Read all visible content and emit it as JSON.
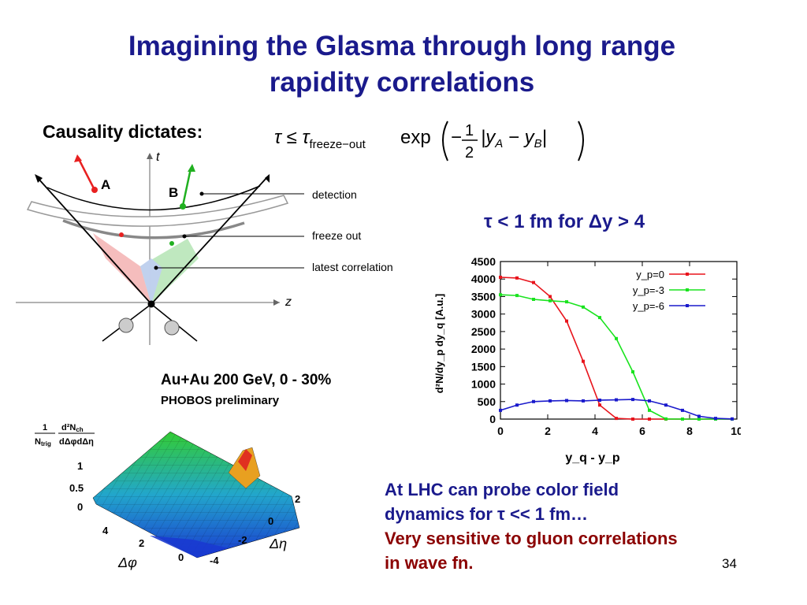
{
  "slide": {
    "title_line1": "Imagining the Glasma through long range",
    "title_line2": "rapidity correlations",
    "causality_label": "Causality dictates:",
    "formula": {
      "lhs": "τ ≤ τ",
      "sub": "freeze−out",
      "exp": "exp",
      "frac_num": "1",
      "frac_den": "2",
      "rest": "|y",
      "a": "A",
      "minus": " − y",
      "b": "B",
      "close": "|"
    },
    "tau_note": "τ < 1 fm for Δy > 4",
    "page_number": "34"
  },
  "diagram": {
    "t_label": "t",
    "z_label": "z",
    "a_label": "A",
    "b_label": "B",
    "detection": "detection",
    "freeze_out": "freeze out",
    "latest_correlation": "latest correlation"
  },
  "plot3d": {
    "label1": "Au+Au 200 GeV, 0 - 30%",
    "label2": "PHOBOS preliminary",
    "zaxis_num1": "1",
    "zaxis_num2": "d²N",
    "zaxis_num2_sub": "ch",
    "zaxis_den1": "N",
    "zaxis_den1_sub": "trig",
    "zaxis_den2": "dΔφdΔη",
    "z_ticks": [
      "1",
      "0.5",
      "0"
    ],
    "phi_ticks": [
      "4",
      "2",
      "0"
    ],
    "eta_ticks": [
      "2",
      "0",
      "-2",
      "-4"
    ],
    "phi_label": "Δφ",
    "eta_label": "Δη"
  },
  "chart_data": {
    "type": "line",
    "xlabel": "y_q - y_p",
    "ylabel": "d²N/dy_p dy_q [A.u.]",
    "xlim": [
      0,
      10
    ],
    "ylim": [
      0,
      4500
    ],
    "x_ticks": [
      "0",
      "2",
      "4",
      "6",
      "8",
      "10"
    ],
    "y_ticks": [
      "0",
      "500",
      "1000",
      "1500",
      "2000",
      "2500",
      "3000",
      "3500",
      "4000",
      "4500"
    ],
    "legend_position": "top-right",
    "grid": false,
    "series": [
      {
        "name": "y_p=0",
        "color": "#e8141c",
        "x": [
          0,
          0.7,
          1.4,
          2.1,
          2.8,
          3.5,
          4.2,
          4.9,
          5.6,
          6.3,
          7.0,
          7.7,
          8.4,
          9.1,
          9.8
        ],
        "y": [
          4050,
          4030,
          3900,
          3500,
          2800,
          1650,
          400,
          20,
          0,
          0,
          0,
          0,
          0,
          0,
          0
        ]
      },
      {
        "name": "y_p=-3",
        "color": "#19e31e",
        "x": [
          0,
          0.7,
          1.4,
          2.1,
          2.8,
          3.5,
          4.2,
          4.9,
          5.6,
          6.3,
          7.0,
          7.7,
          8.4,
          9.1,
          9.8
        ],
        "y": [
          3550,
          3530,
          3420,
          3380,
          3350,
          3200,
          2900,
          2300,
          1350,
          250,
          5,
          0,
          0,
          0,
          0
        ]
      },
      {
        "name": "y_p=-6",
        "color": "#1a1acc",
        "x": [
          0,
          0.7,
          1.4,
          2.1,
          2.8,
          3.5,
          4.2,
          4.9,
          5.6,
          6.3,
          7.0,
          7.7,
          8.4,
          9.1,
          9.8
        ],
        "y": [
          250,
          400,
          500,
          520,
          530,
          520,
          540,
          550,
          560,
          520,
          400,
          250,
          80,
          20,
          5
        ]
      }
    ]
  },
  "lhc": {
    "line1": "At LHC can probe color field",
    "line2": "dynamics for  τ << 1 fm…",
    "line3": "Very sensitive to gluon correlations",
    "line4": "in wave fn."
  },
  "colors": {
    "title": "#1a1a8c",
    "red_text": "#8b0000",
    "light_red": "#f4b6b6",
    "light_green": "#b8e6b8",
    "light_blue": "#c0d0f0"
  }
}
